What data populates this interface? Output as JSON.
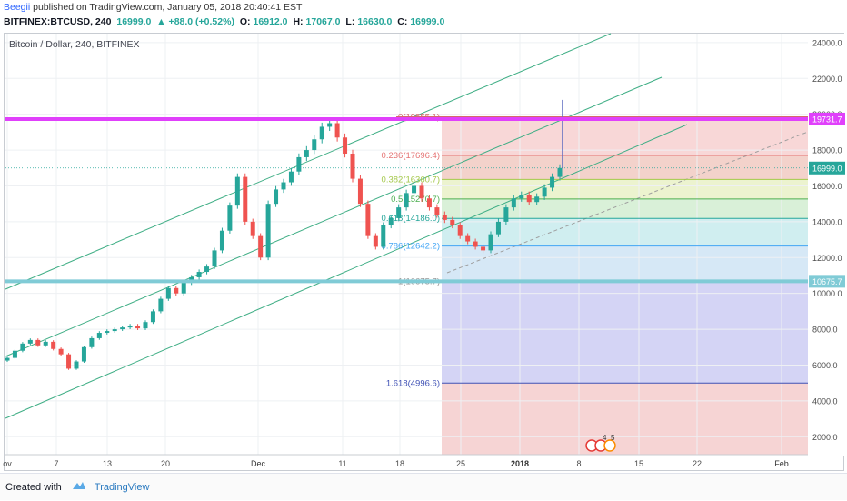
{
  "publish": {
    "user": "Beegii",
    "text": " published on TradingView.com, January 05, 2018 20:40:41 EST"
  },
  "ohlc": {
    "symbol": "BITFINEX:BTCUSD, 240",
    "last": "16999.0",
    "change": "▲ +88.0 (+0.52%)",
    "o_label": "O:",
    "o": "16912.0",
    "h_label": "H:",
    "h": "17067.0",
    "l_label": "L:",
    "l": "16630.0",
    "c_label": "C:",
    "c": "16999.0"
  },
  "footer": {
    "created_with": "Created with",
    "brand": "TradingView"
  },
  "chart_data": {
    "type": "candlestick",
    "title": "Bitcoin / Dollar, 240, BITFINEX",
    "ylim": [
      1000,
      24500
    ],
    "y_ticks": [
      "24000.0",
      "22000.0",
      "20000.0",
      "18000.0",
      "16000.0",
      "14000.0",
      "12000.0",
      "10000.0",
      "8000.0",
      "6000.0",
      "4000.0",
      "2000.0"
    ],
    "x_ticks": [
      "ov",
      "7",
      "13",
      "20",
      "Dec",
      "11",
      "18",
      "25",
      "2018",
      "8",
      "15",
      "22",
      "Feb"
    ],
    "price_labels": {
      "resistance": "19731.7",
      "last": "16999.0",
      "support": "10675.7"
    },
    "fib_levels": [
      {
        "label": "0(19855.1)",
        "value": 19855.1,
        "color": "#d46a6a"
      },
      {
        "label": "0.236(17696.4)",
        "value": 17696.4,
        "color": "#e57373"
      },
      {
        "label": "0.382(16360.7)",
        "value": 16360.7,
        "color": "#a4c84a"
      },
      {
        "label": "0.5(15270.7)",
        "value": 15270.7,
        "color": "#4caf50"
      },
      {
        "label": "0.618(14186.0)",
        "value": 14186.0,
        "color": "#26a69a"
      },
      {
        "label": "0.786(12642.2)",
        "value": 12642.2,
        "color": "#42a5f5"
      },
      {
        "label": "1(10675.7)",
        "value": 10675.7,
        "color": "#999999"
      },
      {
        "label": "1.618(4996.6)",
        "value": 4996.6,
        "color": "#3f51b5"
      }
    ],
    "events_badge": [
      "4",
      "5"
    ],
    "series_close": [
      6400,
      6800,
      7200,
      7400,
      7100,
      7300,
      6900,
      6600,
      5800,
      6200,
      7000,
      7500,
      7800,
      7900,
      8000,
      8100,
      8200,
      8050,
      8400,
      9000,
      9700,
      10300,
      10000,
      10600,
      10900,
      11200,
      11500,
      12400,
      13500,
      14900,
      16500,
      14000,
      13200,
      12000,
      15000,
      15800,
      16200,
      16800,
      17600,
      18000,
      18600,
      19300,
      19500,
      18700,
      17800,
      16400,
      15000,
      13200,
      12600,
      13800,
      14200,
      14800,
      15600,
      16000,
      15300,
      14800,
      14400,
      14100,
      13800,
      13200,
      12900,
      12600,
      12400,
      13300,
      14000,
      14800,
      15300,
      15500,
      15100,
      15400,
      15900,
      16500,
      16999
    ]
  }
}
